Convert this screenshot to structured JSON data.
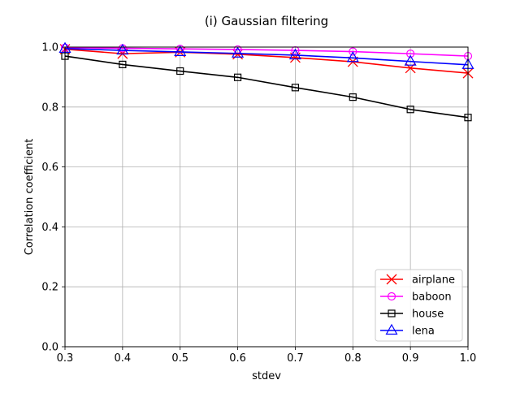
{
  "chart_data": {
    "type": "line",
    "title": "(i) Gaussian filtering",
    "xlabel": "stdev",
    "ylabel": "Correlation coefficient",
    "xlim": [
      0.3,
      1.0
    ],
    "ylim": [
      0.0,
      1.0
    ],
    "xticks": [
      "0.3",
      "0.4",
      "0.5",
      "0.6",
      "0.7",
      "0.8",
      "0.9",
      "1.0"
    ],
    "yticks": [
      "0.0",
      "0.2",
      "0.4",
      "0.6",
      "0.8",
      "1.0"
    ],
    "grid": true,
    "legend_position": "lower-right",
    "x": [
      0.3,
      0.4,
      0.5,
      0.6,
      0.7,
      0.8,
      0.9,
      1.0
    ],
    "series": [
      {
        "name": "airplane",
        "color": "#ff0000",
        "marker": "x-icon",
        "values": [
          0.993,
          0.978,
          0.983,
          0.976,
          0.965,
          0.951,
          0.93,
          0.913
        ]
      },
      {
        "name": "baboon",
        "color": "#ff00ff",
        "marker": "circle-icon",
        "values": [
          0.998,
          0.996,
          0.994,
          0.992,
          0.989,
          0.985,
          0.978,
          0.97
        ]
      },
      {
        "name": "house",
        "color": "#000000",
        "marker": "square-icon",
        "values": [
          0.97,
          0.942,
          0.92,
          0.899,
          0.865,
          0.833,
          0.792,
          0.765
        ]
      },
      {
        "name": "lena",
        "color": "#0000ff",
        "marker": "triangle-icon",
        "values": [
          0.995,
          0.989,
          0.984,
          0.979,
          0.973,
          0.964,
          0.952,
          0.941
        ]
      }
    ]
  }
}
